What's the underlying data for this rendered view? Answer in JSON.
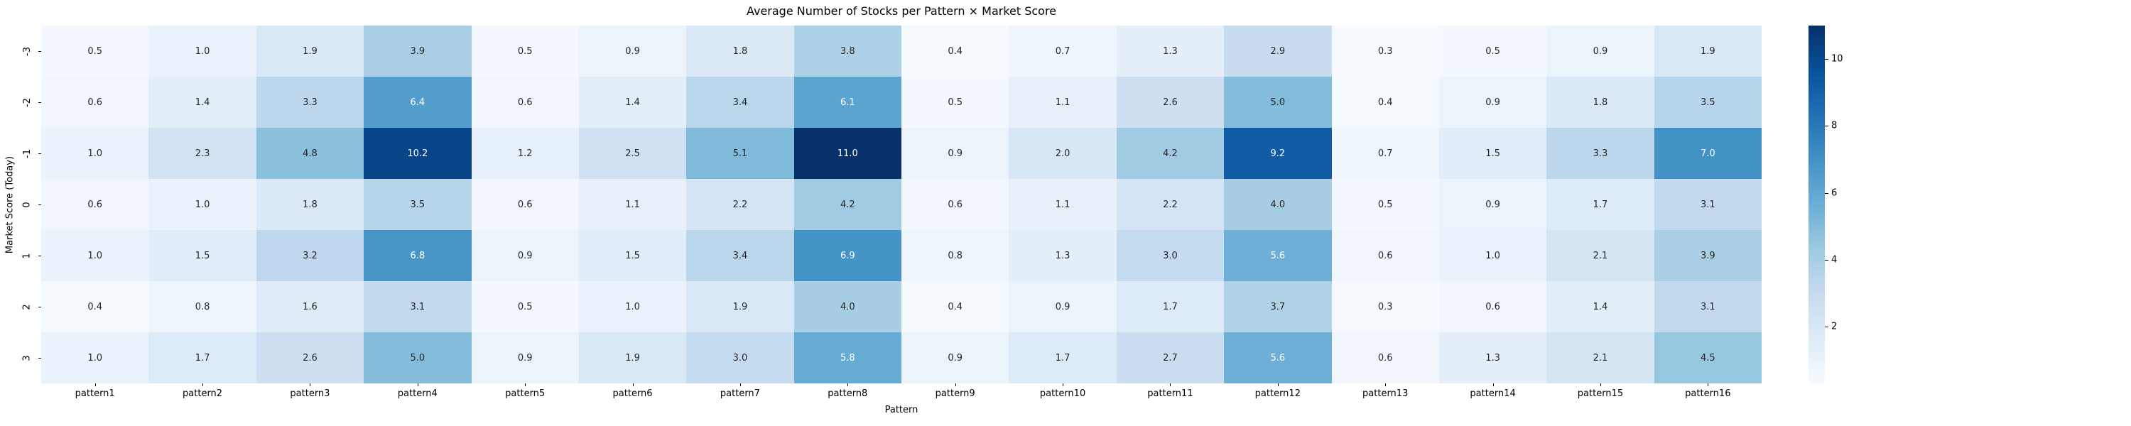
{
  "title": "Average Number of Stocks per Pattern × Market Score",
  "chart_data": {
    "type": "heatmap",
    "title": "Average Number of Stocks per Pattern × Market Score",
    "xlabel": "Pattern",
    "ylabel": "Market Score (Today)",
    "x_categories": [
      "pattern1",
      "pattern2",
      "pattern3",
      "pattern4",
      "pattern5",
      "pattern6",
      "pattern7",
      "pattern8",
      "pattern9",
      "pattern10",
      "pattern11",
      "pattern12",
      "pattern13",
      "pattern14",
      "pattern15",
      "pattern16"
    ],
    "y_categories": [
      "-3",
      "-2",
      "-1",
      "0",
      "1",
      "2",
      "3"
    ],
    "values": [
      [
        0.5,
        1.0,
        1.9,
        3.9,
        0.5,
        0.9,
        1.8,
        3.8,
        0.4,
        0.7,
        1.3,
        2.9,
        0.3,
        0.5,
        0.9,
        1.9
      ],
      [
        0.6,
        1.4,
        3.3,
        6.4,
        0.6,
        1.4,
        3.4,
        6.1,
        0.5,
        1.1,
        2.6,
        5.0,
        0.4,
        0.9,
        1.8,
        3.5
      ],
      [
        1.0,
        2.3,
        4.8,
        10.2,
        1.2,
        2.5,
        5.1,
        11.0,
        0.9,
        2.0,
        4.2,
        9.2,
        0.7,
        1.5,
        3.3,
        7.0
      ],
      [
        0.6,
        1.0,
        1.8,
        3.5,
        0.6,
        1.1,
        2.2,
        4.2,
        0.6,
        1.1,
        2.2,
        4.0,
        0.5,
        0.9,
        1.7,
        3.1
      ],
      [
        1.0,
        1.5,
        3.2,
        6.8,
        0.9,
        1.5,
        3.4,
        6.9,
        0.8,
        1.3,
        3.0,
        5.6,
        0.6,
        1.0,
        2.1,
        3.9
      ],
      [
        0.4,
        0.8,
        1.6,
        3.1,
        0.5,
        1.0,
        1.9,
        4.0,
        0.4,
        0.9,
        1.7,
        3.7,
        0.3,
        0.6,
        1.4,
        3.1
      ],
      [
        1.0,
        1.7,
        2.6,
        5.0,
        0.9,
        1.9,
        3.0,
        5.8,
        0.9,
        1.7,
        2.7,
        5.6,
        0.6,
        1.3,
        2.1,
        4.5
      ]
    ],
    "vmin": 0.3,
    "vmax": 11.0,
    "value_format_decimals": 1,
    "colormap": "Blues",
    "colormap_stops": [
      "#f7fbff",
      "#deebf7",
      "#c6dbef",
      "#9ecae1",
      "#6baed6",
      "#4292c6",
      "#2171b5",
      "#08519c",
      "#08306b"
    ],
    "colorbar_ticks": [
      2,
      4,
      6,
      8,
      10
    ],
    "annotation_colors": {
      "on_light": "#262626",
      "on_dark": "#ffffff"
    },
    "legend_position": "right-colorbar",
    "grid": false
  }
}
